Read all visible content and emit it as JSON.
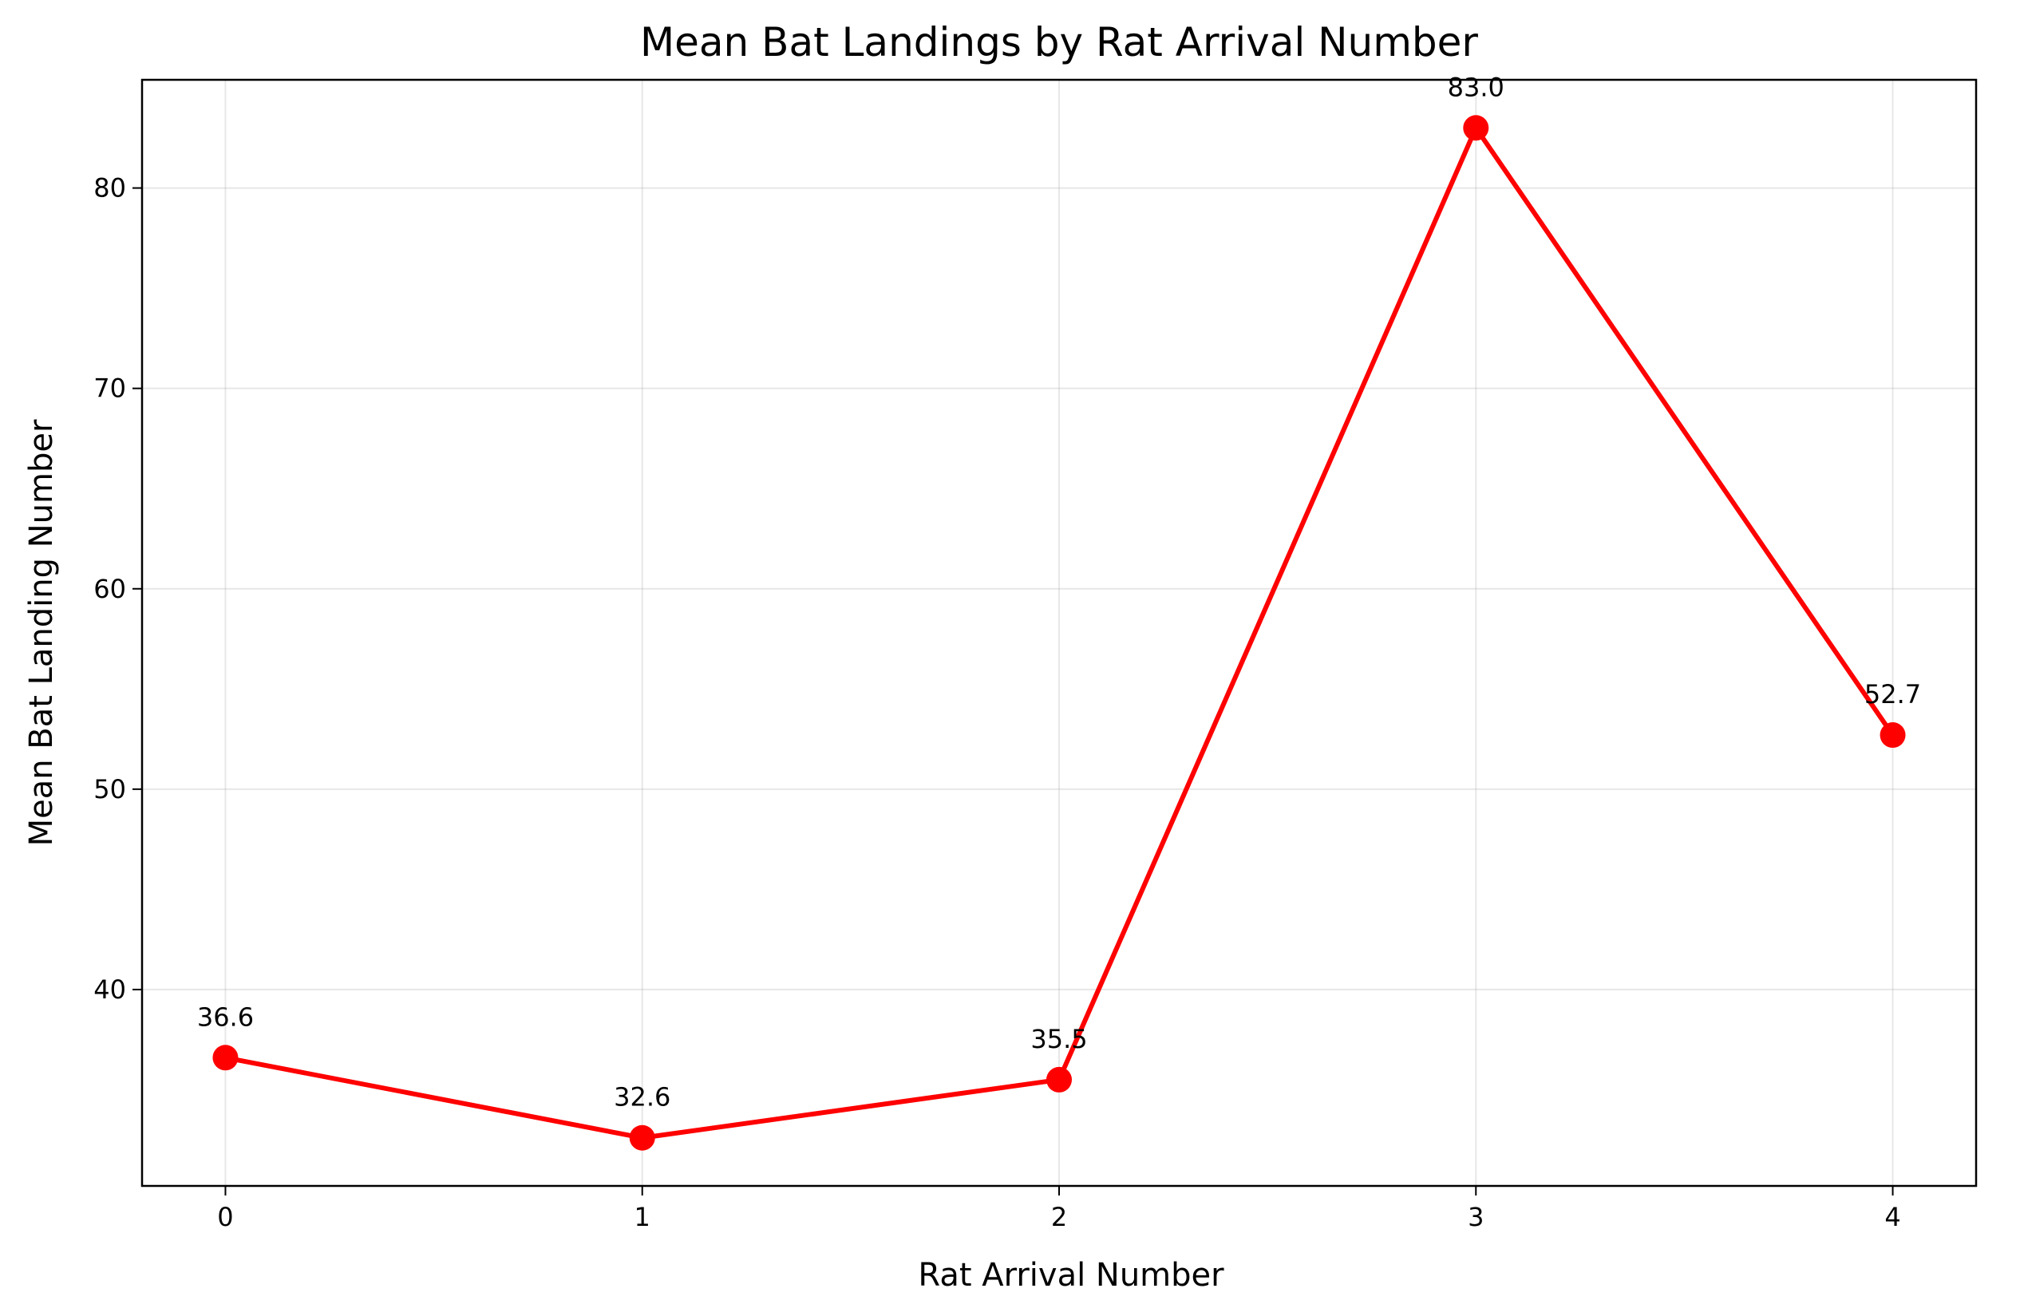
{
  "chart_data": {
    "type": "line",
    "title": "Mean Bat Landings by Rat Arrival Number",
    "xlabel": "Rat Arrival Number",
    "ylabel": "Mean Bat Landing Number",
    "x": [
      0,
      1,
      2,
      3,
      4
    ],
    "x_ticks": [
      0,
      1,
      2,
      3,
      4
    ],
    "y_ticks": [
      40,
      50,
      60,
      70,
      80
    ],
    "xlim": [
      -0.2,
      4.2
    ],
    "ylim": [
      30.2,
      85.4
    ],
    "grid": true,
    "series": [
      {
        "values": [
          36.6,
          32.6,
          35.5,
          83.0,
          52.7
        ],
        "data_labels": [
          "36.6",
          "32.6",
          "35.5",
          "83.0",
          "52.7"
        ],
        "color": "#ff0000",
        "marker": "circle"
      }
    ]
  }
}
